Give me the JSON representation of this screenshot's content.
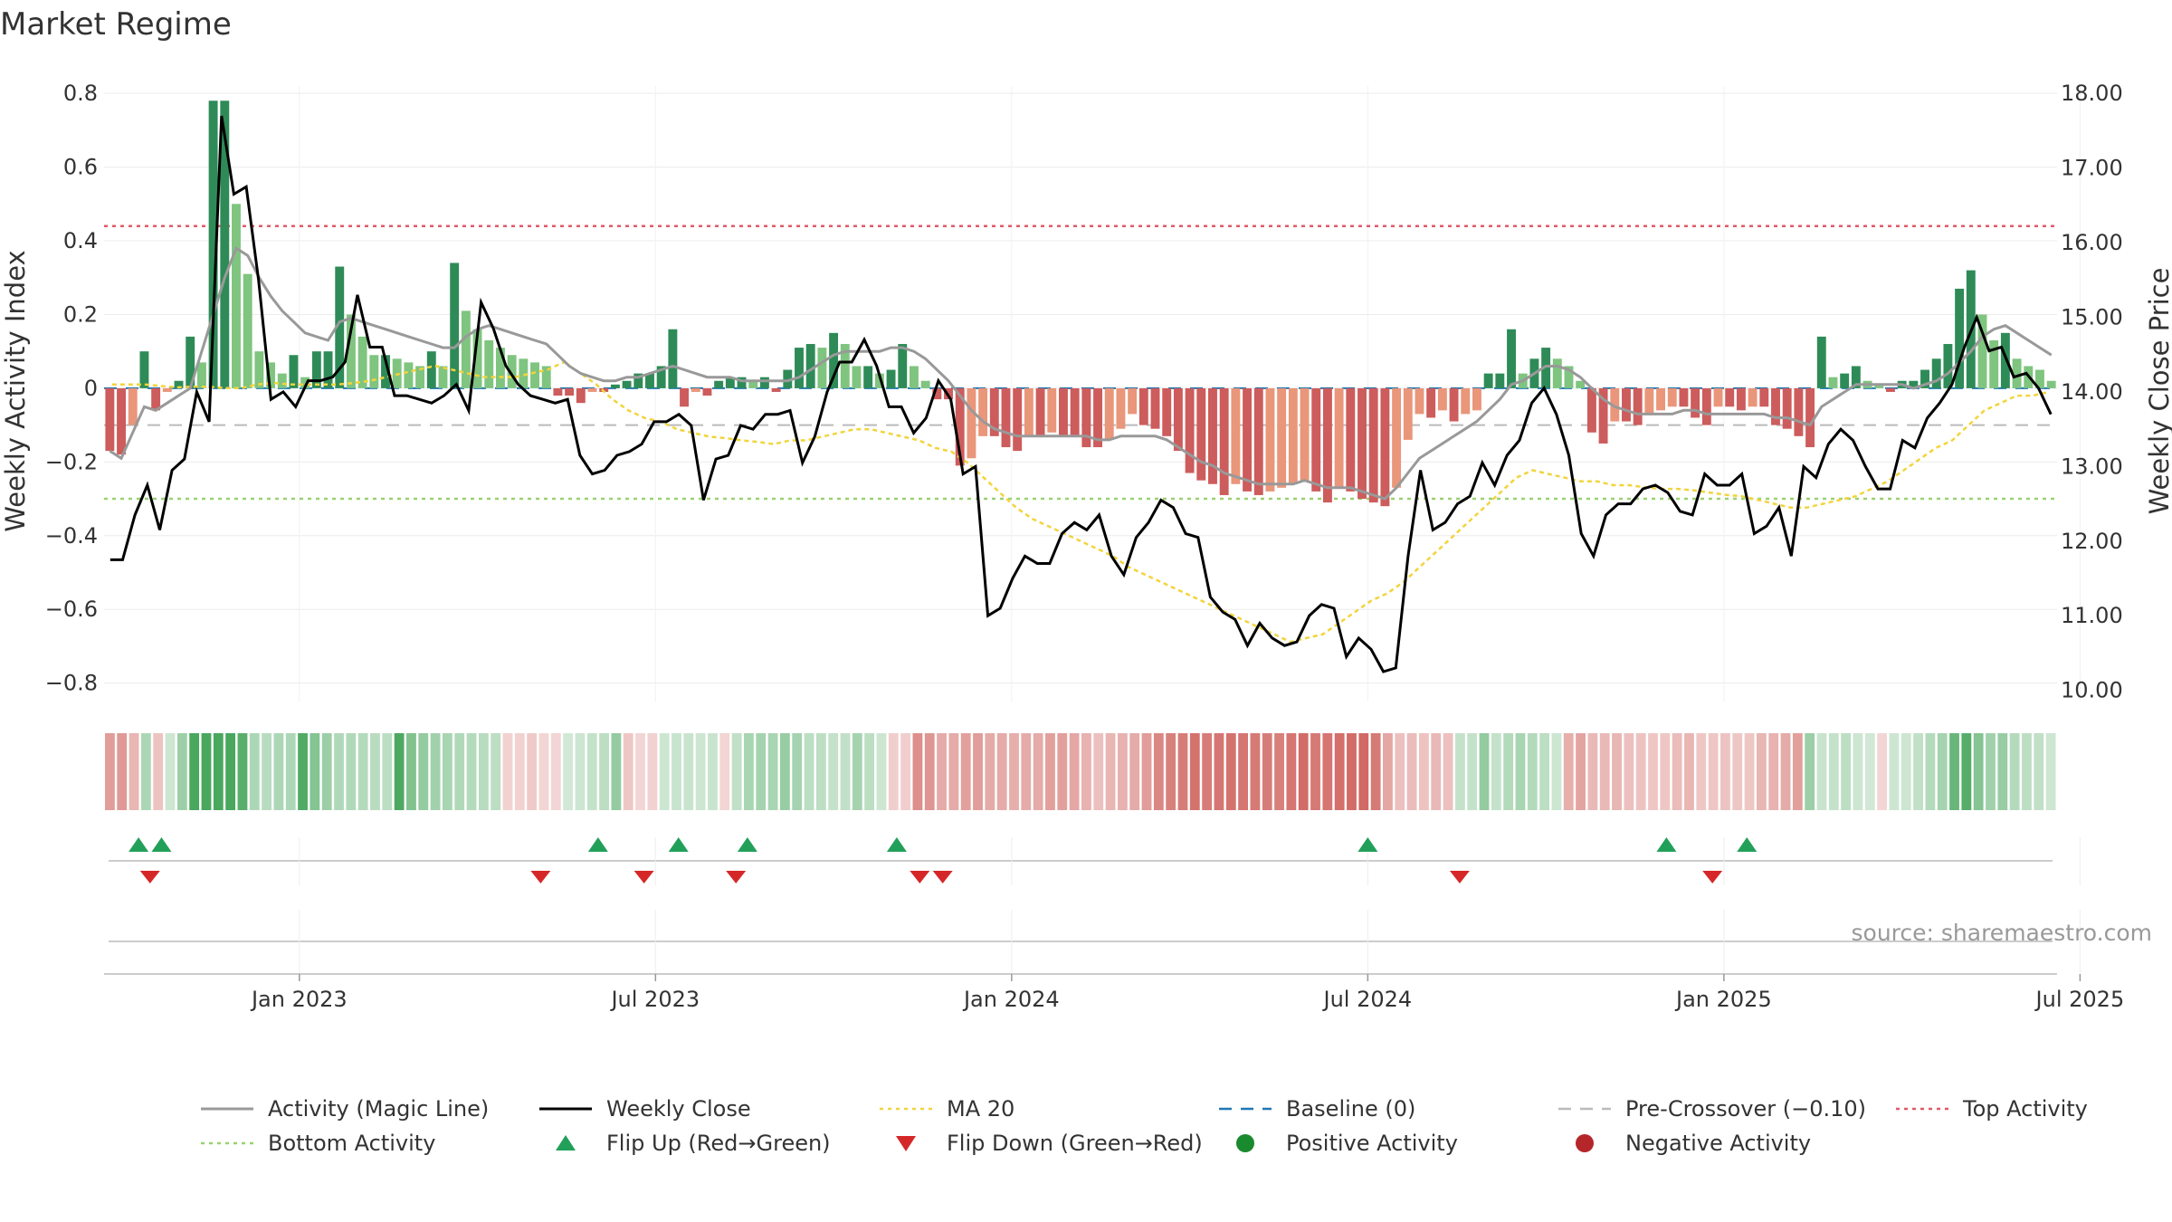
{
  "chart_data": {
    "type": "bar",
    "title": "Market Regime",
    "ylabel": "Weekly Activity Index",
    "y2label": "Weekly Close Price",
    "ylim": [
      -0.85,
      0.82
    ],
    "y2lim": [
      9.85,
      18.1
    ],
    "yticks": [
      "0.8",
      "0.6",
      "0.4",
      "0.2",
      "0",
      "−0.2",
      "−0.4",
      "−0.6",
      "−0.8"
    ],
    "yticks_values": [
      0.8,
      0.6,
      0.4,
      0.2,
      0,
      -0.2,
      -0.4,
      -0.6,
      -0.8
    ],
    "y2ticks": [
      "18.00",
      "17.00",
      "16.00",
      "15.00",
      "14.00",
      "13.00",
      "12.00",
      "11.00",
      "10.00"
    ],
    "y2ticks_values": [
      18,
      17,
      16,
      15,
      14,
      13,
      12,
      11,
      10
    ],
    "xticks": [
      "Jan 2023",
      "Jul 2023",
      "Jan 2024",
      "Jul 2024",
      "Jan 2025",
      "Jul 2025"
    ],
    "xticks_week_index": [
      17,
      48,
      79,
      110,
      141,
      172
    ],
    "grid": true,
    "legend_position": "bottom",
    "source": "source: sharemaestro.com",
    "reference_lines": {
      "top": 0.44,
      "bottom": -0.3,
      "pre_crossover": -0.1,
      "baseline": 0
    },
    "activity": [
      -0.17,
      -0.18,
      -0.1,
      0.1,
      -0.06,
      -0.01,
      0.02,
      0.14,
      0.07,
      0.78,
      0.78,
      0.5,
      0.31,
      0.1,
      0.07,
      0.04,
      0.09,
      0.03,
      0.1,
      0.1,
      0.33,
      0.2,
      0.14,
      0.09,
      0.09,
      0.08,
      0.07,
      0.06,
      0.1,
      0.06,
      0.34,
      0.21,
      0.16,
      0.13,
      0.11,
      0.09,
      0.08,
      0.07,
      0.06,
      -0.02,
      -0.02,
      -0.04,
      -0.01,
      -0.01,
      0.01,
      0.02,
      0.04,
      0.04,
      0.06,
      0.16,
      -0.05,
      -0.01,
      -0.02,
      0.02,
      0.03,
      0.03,
      0.02,
      0.03,
      -0.01,
      0.05,
      0.11,
      0.12,
      0.11,
      0.15,
      0.12,
      0.06,
      0.06,
      0.04,
      0.05,
      0.12,
      0.06,
      0.02,
      -0.03,
      -0.03,
      -0.21,
      -0.19,
      -0.13,
      -0.13,
      -0.16,
      -0.17,
      -0.13,
      -0.13,
      -0.12,
      -0.13,
      -0.13,
      -0.16,
      -0.16,
      -0.14,
      -0.11,
      -0.07,
      -0.1,
      -0.11,
      -0.13,
      -0.17,
      -0.23,
      -0.25,
      -0.26,
      -0.29,
      -0.26,
      -0.28,
      -0.29,
      -0.28,
      -0.27,
      -0.26,
      -0.25,
      -0.28,
      -0.31,
      -0.27,
      -0.28,
      -0.3,
      -0.31,
      -0.32,
      -0.27,
      -0.14,
      -0.07,
      -0.08,
      -0.06,
      -0.09,
      -0.07,
      -0.06,
      0.04,
      0.04,
      0.16,
      0.04,
      0.08,
      0.11,
      0.08,
      0.06,
      0.02,
      -0.12,
      -0.15,
      -0.09,
      -0.09,
      -0.1,
      -0.07,
      -0.06,
      -0.05,
      -0.05,
      -0.08,
      -0.1,
      -0.05,
      -0.05,
      -0.06,
      -0.05,
      -0.05,
      -0.1,
      -0.11,
      -0.13,
      -0.16,
      0.14,
      0.03,
      0.04,
      0.06,
      0.02,
      0.01,
      -0.01,
      0.02,
      0.02,
      0.05,
      0.08,
      0.12,
      0.27,
      0.32,
      0.2,
      0.13,
      0.15,
      0.08,
      0.06,
      0.05,
      0.02
    ],
    "magic_line": [
      -0.17,
      -0.19,
      -0.12,
      -0.05,
      -0.06,
      -0.04,
      -0.02,
      0.0,
      0.1,
      0.2,
      0.3,
      0.38,
      0.36,
      0.3,
      0.25,
      0.21,
      0.18,
      0.15,
      0.14,
      0.13,
      0.18,
      0.19,
      0.18,
      0.17,
      0.16,
      0.15,
      0.14,
      0.13,
      0.12,
      0.11,
      0.11,
      0.14,
      0.16,
      0.17,
      0.16,
      0.15,
      0.14,
      0.13,
      0.12,
      0.09,
      0.06,
      0.04,
      0.03,
      0.02,
      0.02,
      0.03,
      0.03,
      0.04,
      0.05,
      0.06,
      0.05,
      0.04,
      0.03,
      0.03,
      0.03,
      0.02,
      0.02,
      0.02,
      0.02,
      0.02,
      0.03,
      0.05,
      0.07,
      0.09,
      0.1,
      0.1,
      0.1,
      0.1,
      0.11,
      0.11,
      0.1,
      0.08,
      0.05,
      0.02,
      -0.02,
      -0.06,
      -0.09,
      -0.11,
      -0.12,
      -0.13,
      -0.13,
      -0.13,
      -0.13,
      -0.13,
      -0.13,
      -0.13,
      -0.14,
      -0.14,
      -0.13,
      -0.13,
      -0.13,
      -0.13,
      -0.14,
      -0.16,
      -0.18,
      -0.2,
      -0.21,
      -0.23,
      -0.24,
      -0.25,
      -0.26,
      -0.26,
      -0.26,
      -0.26,
      -0.25,
      -0.26,
      -0.27,
      -0.27,
      -0.27,
      -0.28,
      -0.29,
      -0.3,
      -0.27,
      -0.23,
      -0.19,
      -0.17,
      -0.15,
      -0.13,
      -0.11,
      -0.09,
      -0.06,
      -0.03,
      0.01,
      0.02,
      0.04,
      0.06,
      0.06,
      0.05,
      0.03,
      0.0,
      -0.03,
      -0.05,
      -0.06,
      -0.07,
      -0.07,
      -0.07,
      -0.07,
      -0.06,
      -0.06,
      -0.07,
      -0.07,
      -0.07,
      -0.07,
      -0.07,
      -0.07,
      -0.08,
      -0.08,
      -0.09,
      -0.1,
      -0.05,
      -0.03,
      -0.01,
      0.01,
      0.01,
      0.01,
      0.01,
      0.01,
      0.0,
      0.01,
      0.02,
      0.04,
      0.07,
      0.1,
      0.14,
      0.16,
      0.17,
      0.15,
      0.13,
      0.11,
      0.09
    ],
    "weekly_close": [
      11.75,
      11.75,
      12.35,
      12.75,
      12.15,
      12.95,
      13.1,
      14.0,
      13.6,
      17.7,
      16.65,
      16.75,
      15.5,
      13.9,
      14.0,
      13.8,
      14.15,
      14.15,
      14.2,
      14.4,
      15.3,
      14.6,
      14.6,
      13.95,
      13.95,
      13.9,
      13.85,
      13.95,
      14.1,
      13.75,
      15.2,
      14.85,
      14.35,
      14.1,
      13.95,
      13.9,
      13.85,
      13.9,
      13.15,
      12.9,
      12.95,
      13.15,
      13.2,
      13.3,
      13.6,
      13.6,
      13.7,
      13.55,
      12.55,
      13.1,
      13.15,
      13.55,
      13.5,
      13.7,
      13.7,
      13.75,
      13.05,
      13.4,
      14.0,
      14.4,
      14.4,
      14.7,
      14.35,
      13.8,
      13.8,
      13.45,
      13.65,
      14.15,
      13.9,
      12.9,
      13.0,
      11.0,
      11.1,
      11.5,
      11.8,
      11.7,
      11.7,
      12.1,
      12.25,
      12.15,
      12.35,
      11.8,
      11.55,
      12.05,
      12.25,
      12.55,
      12.45,
      12.1,
      12.05,
      11.25,
      11.05,
      10.95,
      10.6,
      10.9,
      10.7,
      10.6,
      10.65,
      11.0,
      11.15,
      11.1,
      10.45,
      10.7,
      10.55,
      10.25,
      10.3,
      11.8,
      12.95,
      12.15,
      12.25,
      12.5,
      12.6,
      13.05,
      12.75,
      13.15,
      13.35,
      13.85,
      14.05,
      13.7,
      13.15,
      12.1,
      11.8,
      12.35,
      12.5,
      12.5,
      12.7,
      12.75,
      12.65,
      12.4,
      12.35,
      12.9,
      12.75,
      12.75,
      12.9,
      12.1,
      12.2,
      12.45,
      11.8,
      13.0,
      12.85,
      13.3,
      13.5,
      13.35,
      13.0,
      12.7,
      12.7,
      13.35,
      13.25,
      13.65,
      13.85,
      14.1,
      14.6,
      15.0,
      14.55,
      14.6,
      14.2,
      14.25,
      14.05,
      13.7
    ],
    "ma20": [
      14.1,
      14.1,
      14.1,
      14.08,
      14.06,
      14.07,
      14.07,
      14.05,
      14.05,
      14.1,
      14.12,
      14.1,
      14.1,
      14.1,
      14.1,
      14.12,
      14.15,
      14.2,
      14.25,
      14.3,
      14.35,
      14.3,
      14.25,
      14.2,
      14.2,
      14.2,
      14.25,
      14.3,
      14.4,
      14.25,
      14.1,
      13.9,
      13.75,
      13.65,
      13.6,
      13.5,
      13.45,
      13.4,
      13.38,
      13.35,
      13.33,
      13.3,
      13.35,
      13.35,
      13.4,
      13.45,
      13.5,
      13.5,
      13.45,
      13.4,
      13.35,
      13.25,
      13.2,
      13.05,
      12.85,
      12.65,
      12.45,
      12.3,
      12.2,
      12.1,
      12.0,
      11.9,
      11.8,
      11.65,
      11.55,
      11.45,
      11.35,
      11.25,
      11.15,
      11.05,
      10.95,
      10.85,
      10.75,
      10.65,
      10.7,
      10.75,
      10.9,
      11.05,
      11.2,
      11.3,
      11.45,
      11.65,
      11.85,
      12.05,
      12.25,
      12.45,
      12.65,
      12.85,
      12.95,
      12.9,
      12.85,
      12.8,
      12.8,
      12.75,
      12.75,
      12.72,
      12.7,
      12.7,
      12.68,
      12.65,
      12.62,
      12.6,
      12.55,
      12.5,
      12.45,
      12.45,
      12.5,
      12.55,
      12.6,
      12.7,
      12.8,
      12.95,
      13.1,
      13.25,
      13.35,
      13.55,
      13.75,
      13.85,
      13.95,
      13.95,
      14.0
    ],
    "regime_band": [
      -0.17,
      -0.18,
      -0.1,
      0.1,
      -0.06,
      0.02,
      0.14,
      0.5,
      0.78,
      0.78,
      0.5,
      0.31,
      0.1,
      0.07,
      0.1,
      0.1,
      0.33,
      0.2,
      0.14,
      0.09,
      0.09,
      0.08,
      0.07,
      0.06,
      0.34,
      0.21,
      0.16,
      0.13,
      0.11,
      0.09,
      0.08,
      0.07,
      0.06,
      -0.02,
      -0.02,
      -0.04,
      -0.01,
      -0.01,
      0.01,
      0.02,
      0.04,
      0.06,
      0.16,
      -0.05,
      -0.01,
      -0.02,
      0.02,
      0.03,
      0.03,
      0.02,
      0.03,
      -0.01,
      0.05,
      0.11,
      0.12,
      0.11,
      0.15,
      0.12,
      0.06,
      0.06,
      0.04,
      0.05,
      0.12,
      0.06,
      0.02,
      -0.03,
      -0.03,
      -0.21,
      -0.19,
      -0.13,
      -0.13,
      -0.16,
      -0.17,
      -0.13,
      -0.13,
      -0.12,
      -0.13,
      -0.13,
      -0.16,
      -0.16,
      -0.14,
      -0.11,
      -0.07,
      -0.1,
      -0.11,
      -0.13,
      -0.17,
      -0.23,
      -0.25,
      -0.26,
      -0.29,
      -0.26,
      -0.28,
      -0.29,
      -0.28,
      -0.27,
      -0.26,
      -0.25,
      -0.28,
      -0.31,
      -0.27,
      -0.28,
      -0.3,
      -0.31,
      -0.32,
      -0.27,
      -0.14,
      -0.07,
      -0.08,
      -0.06,
      -0.09,
      -0.07,
      0.04,
      0.04,
      0.16,
      0.04,
      0.08,
      0.11,
      0.08,
      0.06,
      0.02,
      -0.12,
      -0.15,
      -0.09,
      -0.09,
      -0.1,
      -0.07,
      -0.06,
      -0.05,
      -0.05,
      -0.08,
      -0.1,
      -0.05,
      -0.05,
      -0.06,
      -0.05,
      -0.05,
      -0.1,
      -0.11,
      -0.13,
      -0.16,
      0.14,
      0.03,
      0.04,
      0.06,
      0.02,
      0.01,
      -0.01,
      0.02,
      0.02,
      0.05,
      0.08,
      0.12,
      0.27,
      0.32,
      0.2,
      0.13,
      0.15,
      0.08,
      0.06,
      0.05,
      0.02
    ],
    "flip_up_week_index": [
      3,
      5,
      43,
      50,
      56,
      69,
      110,
      136,
      143
    ],
    "flip_down_week_index": [
      4,
      38,
      47,
      55,
      71,
      73,
      118,
      140
    ],
    "legend": [
      {
        "label": "Activity (Magic Line)",
        "kind": "line-solid",
        "color": "#999999"
      },
      {
        "label": "Weekly Close",
        "kind": "line-solid",
        "color": "#000000"
      },
      {
        "label": "MA 20",
        "kind": "line-dotted",
        "color": "#f2d43c"
      },
      {
        "label": "Baseline (0)",
        "kind": "line-dashed",
        "color": "#1f77b4"
      },
      {
        "label": "Pre-Crossover (−0.10)",
        "kind": "line-dashed",
        "color": "#bbbbbb"
      },
      {
        "label": "Top Activity",
        "kind": "line-dotted",
        "color": "#e05a6a"
      },
      {
        "label": "Bottom Activity",
        "kind": "line-dotted",
        "color": "#99d270"
      },
      {
        "label": "Flip Up (Red→Green)",
        "kind": "triangle-up",
        "color": "#22a05a"
      },
      {
        "label": "Flip Down (Green→Red)",
        "kind": "triangle-down",
        "color": "#d62728"
      },
      {
        "label": "Positive Activity",
        "kind": "dot",
        "color": "#1a8a2e"
      },
      {
        "label": "Negative Activity",
        "kind": "dot",
        "color": "#b5262a"
      }
    ],
    "colors": {
      "pos_strong": "#2e8b57",
      "pos_light": "#7fc47f",
      "neg_strong": "#cd5c5c",
      "neg_light": "#e9967a",
      "band_pos": "#3a9f50",
      "band_neg": "#c9504a"
    }
  }
}
